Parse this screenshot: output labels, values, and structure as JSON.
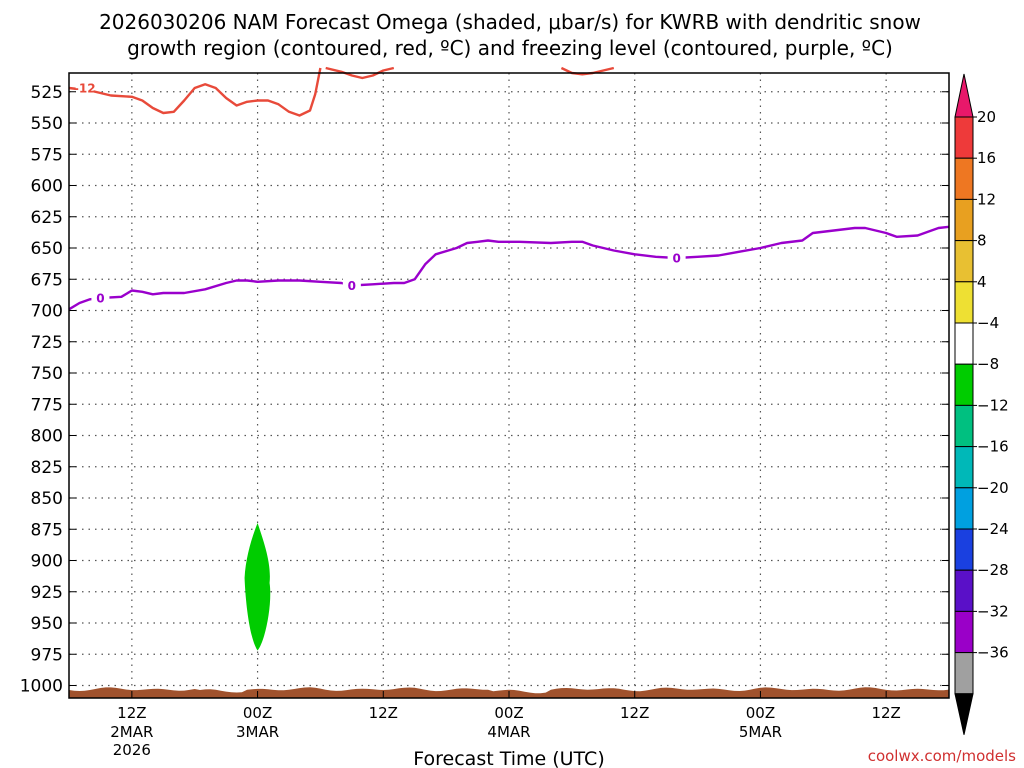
{
  "chart_data": {
    "type": "time-height contour",
    "title_line1": "2026030206 NAM Forecast Omega (shaded, μbar/s) for KWRB with dendritic snow",
    "title_line2": "growth region (contoured, red, ºC) and freezing level (contoured, purple, ºC)",
    "xlabel": "Forecast Time (UTC)",
    "ylabel": "",
    "y_ticks": [
      525,
      550,
      575,
      600,
      625,
      650,
      675,
      700,
      725,
      750,
      775,
      800,
      825,
      850,
      875,
      900,
      925,
      950,
      975,
      1000
    ],
    "ylim": [
      1010,
      510
    ],
    "xlim_hours": [
      0,
      84
    ],
    "x_ticks": [
      {
        "hour": 6,
        "line1": "12Z",
        "line2": "2MAR",
        "line3": "2026"
      },
      {
        "hour": 18,
        "line1": "00Z",
        "line2": "3MAR",
        "line3": ""
      },
      {
        "hour": 30,
        "line1": "12Z",
        "line2": "",
        "line3": ""
      },
      {
        "hour": 42,
        "line1": "00Z",
        "line2": "4MAR",
        "line3": ""
      },
      {
        "hour": 54,
        "line1": "12Z",
        "line2": "",
        "line3": ""
      },
      {
        "hour": 66,
        "line1": "00Z",
        "line2": "5MAR",
        "line3": ""
      },
      {
        "hour": 78,
        "line1": "12Z",
        "line2": "",
        "line3": ""
      }
    ],
    "grid": true,
    "series": [
      {
        "name": "dendritic growth -12C isotherm",
        "color": "#e84a3a",
        "label": "-12",
        "label_at": [
          1.5,
          522
        ],
        "points": [
          [
            0,
            522
          ],
          [
            2,
            524
          ],
          [
            4,
            528
          ],
          [
            6,
            529
          ],
          [
            7,
            532
          ],
          [
            8,
            538
          ],
          [
            9,
            542
          ],
          [
            10,
            541
          ],
          [
            11,
            532
          ],
          [
            12,
            522
          ],
          [
            13,
            519
          ],
          [
            14,
            522
          ],
          [
            15,
            530
          ],
          [
            16,
            536
          ],
          [
            17,
            533
          ],
          [
            18,
            532
          ],
          [
            19,
            532
          ],
          [
            20,
            535
          ],
          [
            21,
            541
          ],
          [
            22,
            544
          ],
          [
            23,
            540
          ],
          [
            23.5,
            527
          ],
          [
            24,
            506
          ]
        ]
      },
      {
        "name": "dendritic growth -12C isotherm (upper)",
        "color": "#e84a3a",
        "label": "",
        "points": [
          [
            24.5,
            506
          ],
          [
            26,
            509
          ],
          [
            27,
            512
          ],
          [
            28,
            514
          ],
          [
            29,
            512
          ],
          [
            30,
            508
          ],
          [
            31,
            506
          ]
        ]
      },
      {
        "name": "dendritic growth -12C isotherm (upper 2)",
        "color": "#e84a3a",
        "label": "",
        "points": [
          [
            47,
            506
          ],
          [
            48,
            510
          ],
          [
            49,
            511
          ],
          [
            50,
            510
          ],
          [
            51,
            508
          ],
          [
            52,
            506
          ]
        ]
      },
      {
        "name": "freezing level 0C isotherm",
        "color": "#9a00cc",
        "label": "0",
        "label_at": [
          [
            3,
            690
          ],
          [
            27,
            680
          ],
          [
            58,
            658
          ]
        ],
        "points": [
          [
            0,
            699
          ],
          [
            1,
            694
          ],
          [
            2,
            691
          ],
          [
            3,
            690
          ],
          [
            5,
            689
          ],
          [
            6,
            684
          ],
          [
            7,
            685
          ],
          [
            8,
            687
          ],
          [
            9,
            686
          ],
          [
            11,
            686
          ],
          [
            13,
            683
          ],
          [
            15,
            678
          ],
          [
            16,
            676
          ],
          [
            17,
            676
          ],
          [
            18,
            677
          ],
          [
            20,
            676
          ],
          [
            22,
            676
          ],
          [
            24,
            677
          ],
          [
            26,
            678
          ],
          [
            27,
            680
          ],
          [
            29,
            679
          ],
          [
            31,
            678
          ],
          [
            32,
            678
          ],
          [
            33,
            675
          ],
          [
            34,
            663
          ],
          [
            35,
            655
          ],
          [
            37,
            650
          ],
          [
            38,
            646
          ],
          [
            39,
            645
          ],
          [
            40,
            644
          ],
          [
            41,
            645
          ],
          [
            43,
            645
          ],
          [
            46,
            646
          ],
          [
            48,
            645
          ],
          [
            49,
            645
          ],
          [
            50,
            648
          ],
          [
            52,
            652
          ],
          [
            54,
            655
          ],
          [
            56,
            657
          ],
          [
            58,
            658
          ],
          [
            60,
            657
          ],
          [
            62,
            656
          ],
          [
            64,
            653
          ],
          [
            66,
            650
          ],
          [
            68,
            646
          ],
          [
            70,
            644
          ],
          [
            71,
            638
          ],
          [
            73,
            636
          ],
          [
            75,
            634
          ],
          [
            76,
            634
          ],
          [
            78,
            638
          ],
          [
            79,
            641
          ],
          [
            81,
            640
          ],
          [
            82,
            637
          ],
          [
            83,
            634
          ],
          [
            84,
            633
          ]
        ]
      }
    ],
    "omega_region": {
      "value_range": [
        -8,
        -4
      ],
      "color": "#00cc00",
      "hour_center": 18,
      "pressure_range": [
        870,
        972
      ]
    },
    "surface_band": {
      "color": "#a0522d",
      "pressure_top": 1003
    },
    "colorbar": {
      "ticks": [
        "20",
        "16",
        "12",
        "8",
        "4",
        "−4",
        "−8",
        "−12",
        "−16",
        "−20",
        "−24",
        "−28",
        "−32",
        "−36"
      ],
      "colors_top_to_bottom": [
        "#e8186a",
        "#ee3a3a",
        "#ee7722",
        "#e8a020",
        "#e8c032",
        "#eee033",
        "#ffffff",
        "#00cc00",
        "#00c080",
        "#00b8b8",
        "#00a0e0",
        "#1a40e0",
        "#5a10c8",
        "#9a00c8",
        "#a0a0a0",
        "#000000"
      ]
    },
    "credit": "coolwx.com/models"
  }
}
